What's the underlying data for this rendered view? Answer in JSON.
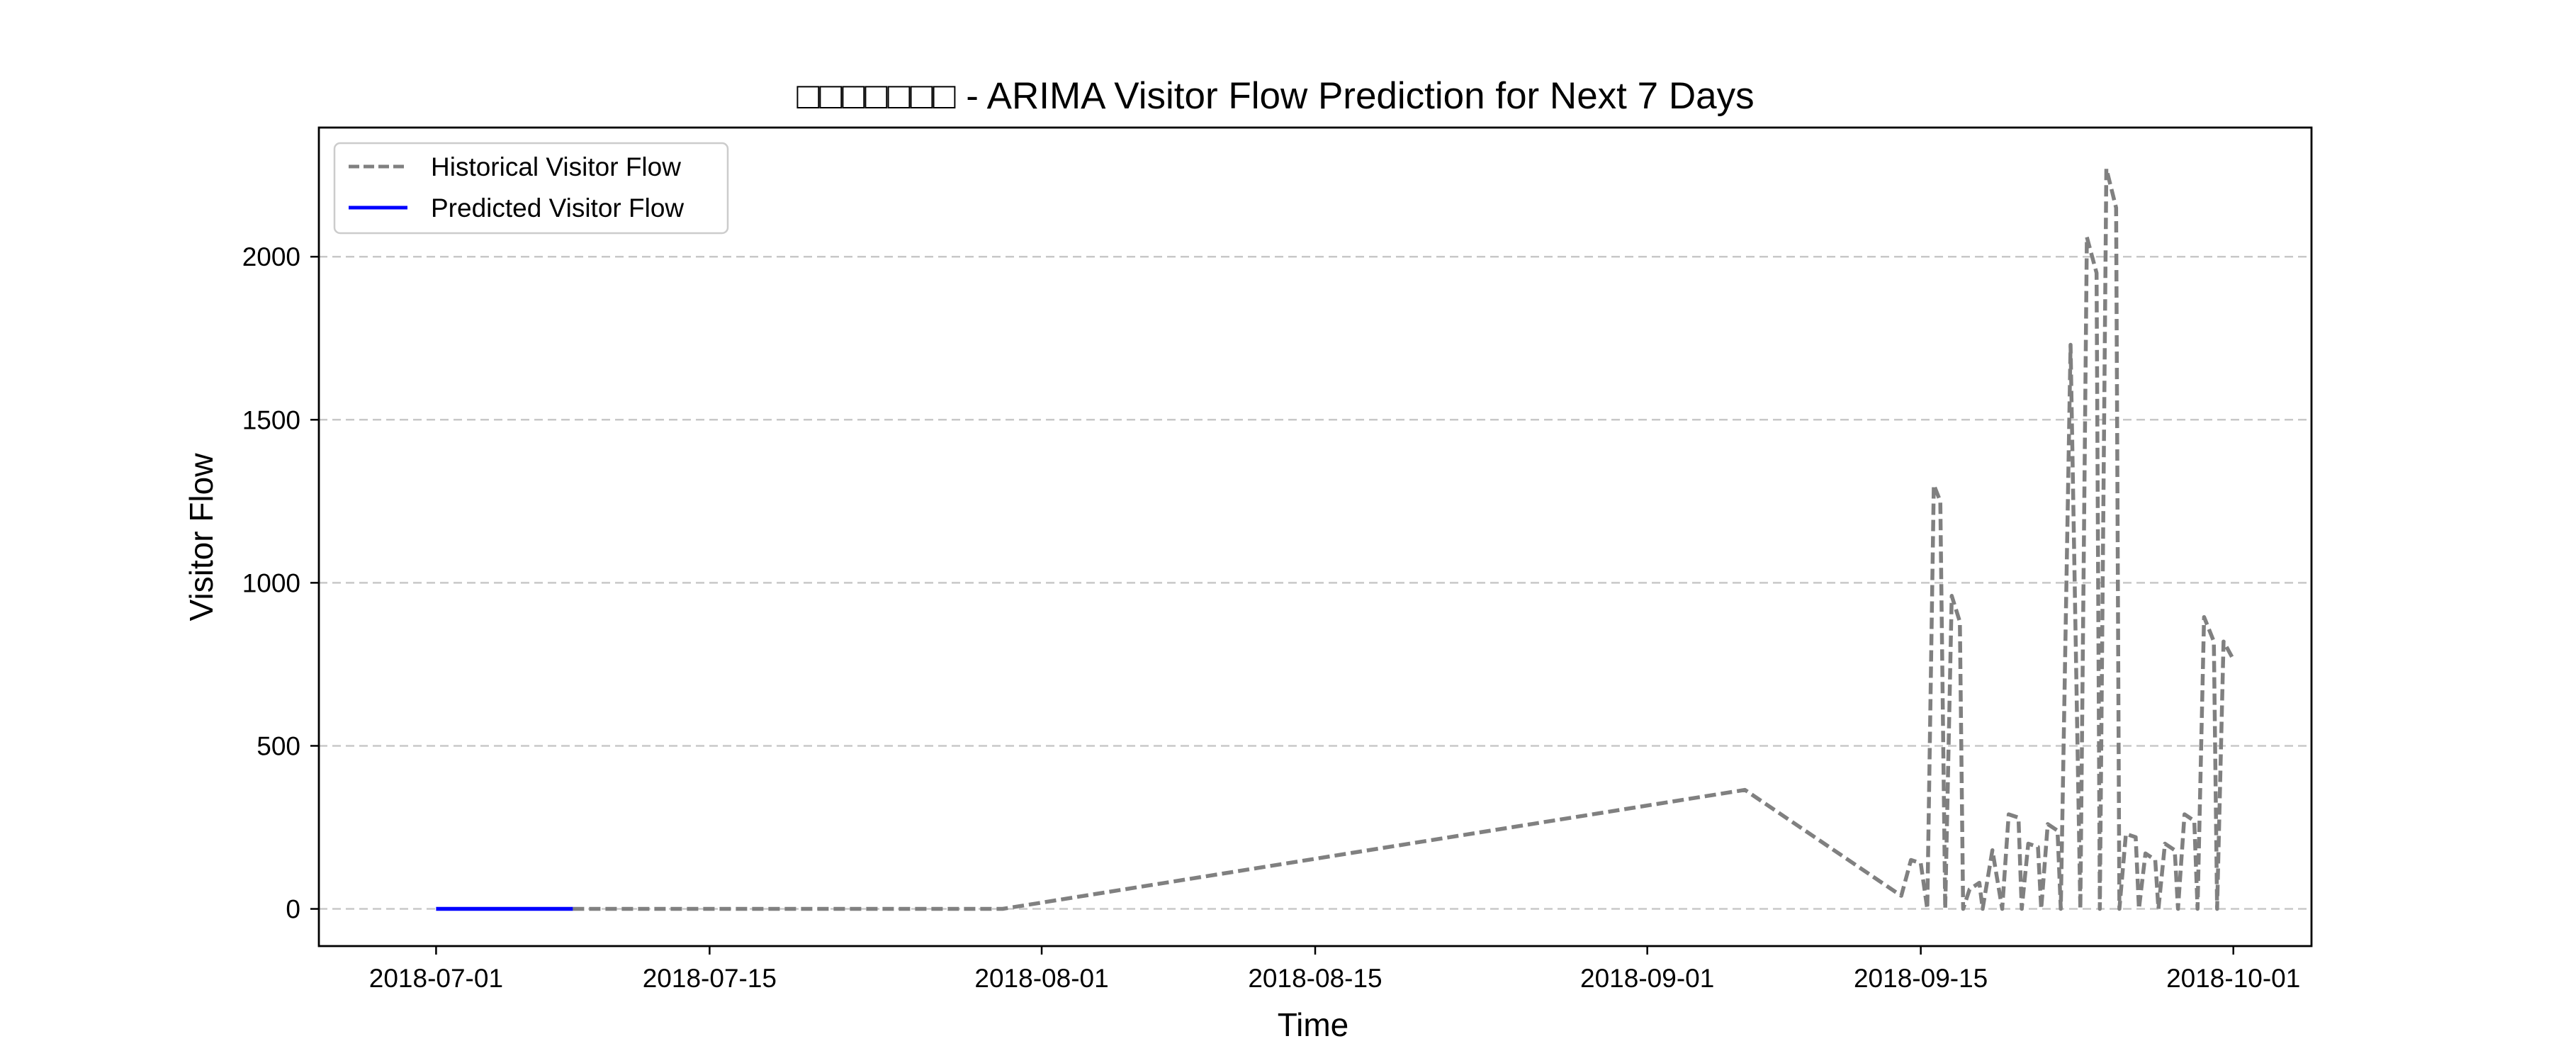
{
  "chart_data": {
    "type": "line",
    "title": "□□□□□□□ - ARIMA Visitor Flow Prediction for Next 7 Days",
    "xlabel": "Time",
    "ylabel": "Visitor Flow",
    "x_range": [
      "2018-06-25",
      "2018-10-05"
    ],
    "ylim": [
      -114,
      2396
    ],
    "x_ticks": [
      "2018-07-01",
      "2018-07-15",
      "2018-08-01",
      "2018-08-15",
      "2018-09-01",
      "2018-09-15",
      "2018-10-01"
    ],
    "y_ticks": [
      0,
      500,
      1000,
      1500,
      2000
    ],
    "grid": "y-dashed",
    "legend_position": "top-left",
    "series": [
      {
        "name": "Historical Visitor Flow",
        "color": "#808080",
        "style": "dashed",
        "points": [
          [
            "2018-07-08",
            0
          ],
          [
            "2018-07-30",
            0
          ],
          [
            "2018-09-06",
            365
          ],
          [
            "2018-09-14",
            40
          ],
          [
            "2018-09-14 12:00",
            150
          ],
          [
            "2018-09-15",
            140
          ],
          [
            "2018-09-15 08:00",
            0
          ],
          [
            "2018-09-15 16:00",
            1300
          ],
          [
            "2018-09-16",
            1250
          ],
          [
            "2018-09-16 06:00",
            0
          ],
          [
            "2018-09-16 14:00",
            960
          ],
          [
            "2018-09-17",
            880
          ],
          [
            "2018-09-17 04:00",
            0
          ],
          [
            "2018-09-17 12:00",
            60
          ],
          [
            "2018-09-18",
            80
          ],
          [
            "2018-09-18 04:00",
            0
          ],
          [
            "2018-09-18 16:00",
            180
          ],
          [
            "2018-09-19 04:00",
            0
          ],
          [
            "2018-09-19 12:00",
            290
          ],
          [
            "2018-09-20",
            280
          ],
          [
            "2018-09-20 04:00",
            0
          ],
          [
            "2018-09-20 12:00",
            200
          ],
          [
            "2018-09-21",
            190
          ],
          [
            "2018-09-21 04:00",
            0
          ],
          [
            "2018-09-21 12:00",
            260
          ],
          [
            "2018-09-22",
            240
          ],
          [
            "2018-09-22 04:00",
            0
          ],
          [
            "2018-09-22 16:00",
            1730
          ],
          [
            "2018-09-23 04:00",
            0
          ],
          [
            "2018-09-23 12:00",
            2060
          ],
          [
            "2018-09-24",
            1950
          ],
          [
            "2018-09-24 04:00",
            0
          ],
          [
            "2018-09-24 12:00",
            2270
          ],
          [
            "2018-09-25",
            2150
          ],
          [
            "2018-09-25 04:00",
            0
          ],
          [
            "2018-09-25 12:00",
            230
          ],
          [
            "2018-09-26",
            220
          ],
          [
            "2018-09-26 04:00",
            0
          ],
          [
            "2018-09-26 12:00",
            170
          ],
          [
            "2018-09-27",
            150
          ],
          [
            "2018-09-27 04:00",
            0
          ],
          [
            "2018-09-27 12:00",
            200
          ],
          [
            "2018-09-28",
            180
          ],
          [
            "2018-09-28 04:00",
            0
          ],
          [
            "2018-09-28 12:00",
            290
          ],
          [
            "2018-09-29",
            270
          ],
          [
            "2018-09-29 04:00",
            0
          ],
          [
            "2018-09-29 12:00",
            895
          ],
          [
            "2018-09-30",
            820
          ],
          [
            "2018-09-30 04:00",
            0
          ],
          [
            "2018-09-30 12:00",
            820
          ],
          [
            "2018-10-01",
            765
          ]
        ]
      },
      {
        "name": "Predicted Visitor Flow",
        "color": "#0000ff",
        "style": "solid",
        "points": [
          [
            "2018-07-01",
            0
          ],
          [
            "2018-07-08",
            0
          ]
        ]
      }
    ]
  }
}
